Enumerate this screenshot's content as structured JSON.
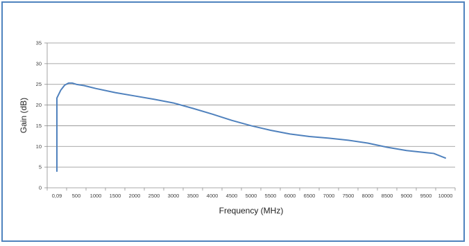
{
  "chart_data": {
    "type": "line",
    "title": "",
    "xlabel": "Frequency (MHz)",
    "ylabel": "Gain (dB)",
    "x_tick_labels": [
      "0,09",
      "500",
      "1000",
      "1500",
      "2000",
      "2500",
      "3000",
      "3500",
      "4000",
      "4500",
      "5000",
      "5500",
      "6000",
      "6500",
      "7000",
      "7500",
      "8000",
      "8500",
      "9000",
      "9500",
      "10000"
    ],
    "y_ticks": [
      0,
      5,
      10,
      15,
      20,
      25,
      30,
      35
    ],
    "ylim": [
      0,
      35
    ],
    "grid": true,
    "legend": "none",
    "line_color": "#4f81bd",
    "frame_color": "#4e82bd",
    "series": [
      {
        "x": [
          0.09,
          0.09,
          100,
          200,
          300,
          400,
          500,
          700,
          1000,
          1500,
          2000,
          2500,
          3000,
          3500,
          4000,
          4500,
          5000,
          5500,
          6000,
          6500,
          7000,
          7500,
          8000,
          8500,
          9000,
          9500,
          9700,
          10000
        ],
        "y": [
          4,
          21.7,
          23.6,
          24.8,
          25.3,
          25.3,
          25.0,
          24.7,
          24.0,
          23.0,
          22.2,
          21.4,
          20.5,
          19.2,
          17.8,
          16.3,
          15.0,
          13.9,
          13.0,
          12.4,
          12.0,
          11.5,
          10.8,
          9.8,
          9.0,
          8.5,
          8.3,
          7.2
        ]
      }
    ]
  }
}
